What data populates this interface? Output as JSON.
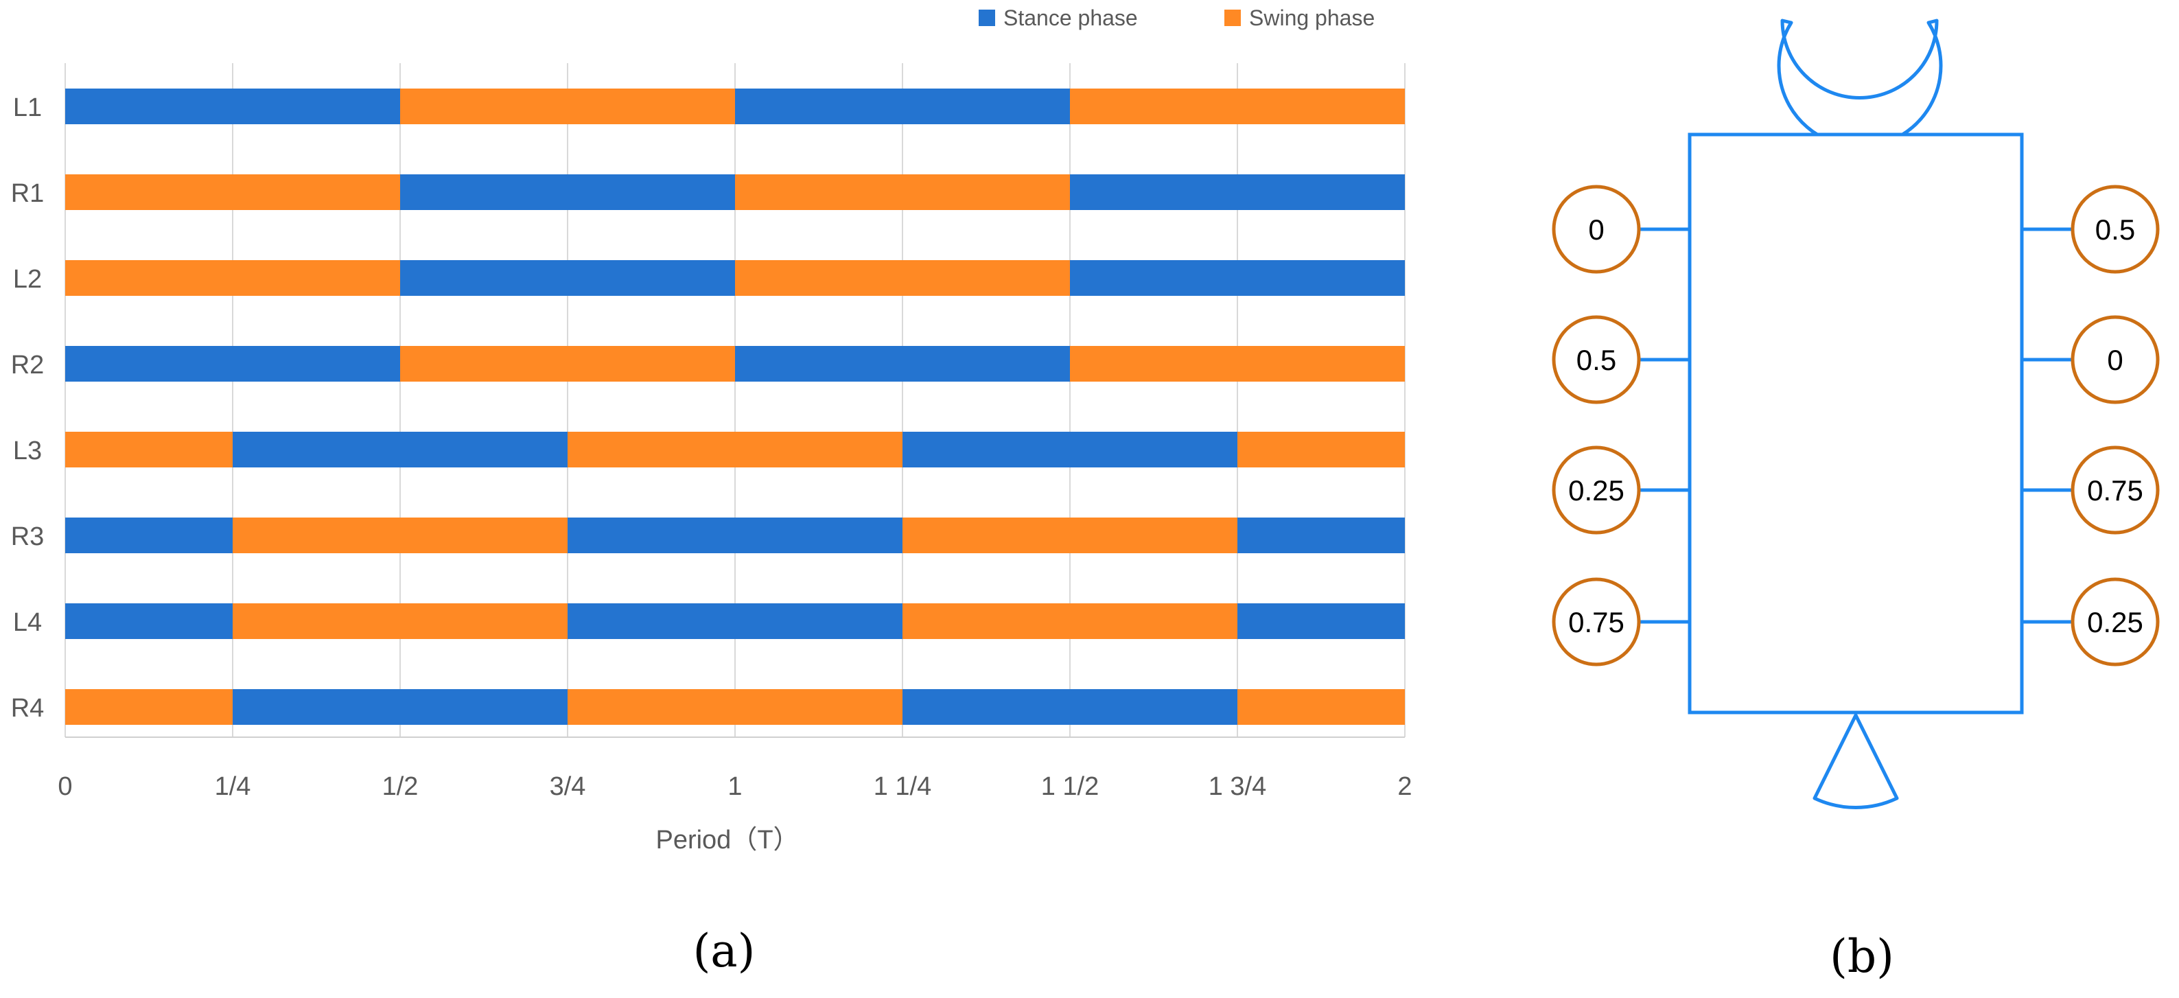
{
  "chart_data": {
    "type": "bar",
    "orientation": "horizontal-gantt",
    "title": "",
    "xlabel": "Period（T）",
    "ylabel": "",
    "xlim": [
      0,
      2
    ],
    "x_ticks": [
      {
        "value": 0,
        "label": "0"
      },
      {
        "value": 0.25,
        "label": "1/4"
      },
      {
        "value": 0.5,
        "label": "1/2"
      },
      {
        "value": 0.75,
        "label": "3/4"
      },
      {
        "value": 1,
        "label": "1"
      },
      {
        "value": 1.25,
        "label": "1 1/4"
      },
      {
        "value": 1.5,
        "label": "1 1/2"
      },
      {
        "value": 1.75,
        "label": "1 3/4"
      },
      {
        "value": 2,
        "label": "2"
      }
    ],
    "grid": "vertical",
    "legend": {
      "placement": "top-right",
      "entries": [
        {
          "key": "stance",
          "label": "Stance phase",
          "color": "#2474D0"
        },
        {
          "key": "swing",
          "label": "Swing phase",
          "color": "#FF8924"
        }
      ]
    },
    "categories": [
      "L1",
      "R1",
      "L2",
      "R2",
      "L3",
      "R3",
      "L4",
      "R4"
    ],
    "rows": [
      {
        "label": "L1",
        "segments": [
          {
            "start": 0,
            "end": 0.5,
            "phase": "stance"
          },
          {
            "start": 0.5,
            "end": 1,
            "phase": "swing"
          },
          {
            "start": 1,
            "end": 1.5,
            "phase": "stance"
          },
          {
            "start": 1.5,
            "end": 2,
            "phase": "swing"
          }
        ]
      },
      {
        "label": "R1",
        "segments": [
          {
            "start": 0,
            "end": 0.5,
            "phase": "swing"
          },
          {
            "start": 0.5,
            "end": 1,
            "phase": "stance"
          },
          {
            "start": 1,
            "end": 1.5,
            "phase": "swing"
          },
          {
            "start": 1.5,
            "end": 2,
            "phase": "stance"
          }
        ]
      },
      {
        "label": "L2",
        "segments": [
          {
            "start": 0,
            "end": 0.5,
            "phase": "swing"
          },
          {
            "start": 0.5,
            "end": 1,
            "phase": "stance"
          },
          {
            "start": 1,
            "end": 1.5,
            "phase": "swing"
          },
          {
            "start": 1.5,
            "end": 2,
            "phase": "stance"
          }
        ]
      },
      {
        "label": "R2",
        "segments": [
          {
            "start": 0,
            "end": 0.5,
            "phase": "stance"
          },
          {
            "start": 0.5,
            "end": 1,
            "phase": "swing"
          },
          {
            "start": 1,
            "end": 1.5,
            "phase": "stance"
          },
          {
            "start": 1.5,
            "end": 2,
            "phase": "swing"
          }
        ]
      },
      {
        "label": "L3",
        "segments": [
          {
            "start": 0,
            "end": 0.25,
            "phase": "swing"
          },
          {
            "start": 0.25,
            "end": 0.75,
            "phase": "stance"
          },
          {
            "start": 0.75,
            "end": 1.25,
            "phase": "swing"
          },
          {
            "start": 1.25,
            "end": 1.75,
            "phase": "stance"
          },
          {
            "start": 1.75,
            "end": 2,
            "phase": "swing"
          }
        ]
      },
      {
        "label": "R3",
        "segments": [
          {
            "start": 0,
            "end": 0.25,
            "phase": "stance"
          },
          {
            "start": 0.25,
            "end": 0.75,
            "phase": "swing"
          },
          {
            "start": 0.75,
            "end": 1.25,
            "phase": "stance"
          },
          {
            "start": 1.25,
            "end": 1.75,
            "phase": "swing"
          },
          {
            "start": 1.75,
            "end": 2,
            "phase": "stance"
          }
        ]
      },
      {
        "label": "L4",
        "segments": [
          {
            "start": 0,
            "end": 0.25,
            "phase": "stance"
          },
          {
            "start": 0.25,
            "end": 0.75,
            "phase": "swing"
          },
          {
            "start": 0.75,
            "end": 1.25,
            "phase": "stance"
          },
          {
            "start": 1.25,
            "end": 1.75,
            "phase": "swing"
          },
          {
            "start": 1.75,
            "end": 2,
            "phase": "stance"
          }
        ]
      },
      {
        "label": "R4",
        "segments": [
          {
            "start": 0,
            "end": 0.25,
            "phase": "swing"
          },
          {
            "start": 0.25,
            "end": 0.75,
            "phase": "stance"
          },
          {
            "start": 0.75,
            "end": 1.25,
            "phase": "swing"
          },
          {
            "start": 1.25,
            "end": 1.75,
            "phase": "stance"
          },
          {
            "start": 1.75,
            "end": 2,
            "phase": "swing"
          }
        ]
      }
    ]
  },
  "captions": {
    "a": "(a)",
    "b": "(b)"
  },
  "diagram": {
    "body_color": "#1E88F0",
    "circle_color": "#CC6F14",
    "head_icon": "crescent-head-icon",
    "tail_icon": "fan-tail-icon",
    "left_legs": [
      "0",
      "0.5",
      "0.25",
      "0.75"
    ],
    "right_legs": [
      "0.5",
      "0",
      "0.75",
      "0.25"
    ]
  }
}
